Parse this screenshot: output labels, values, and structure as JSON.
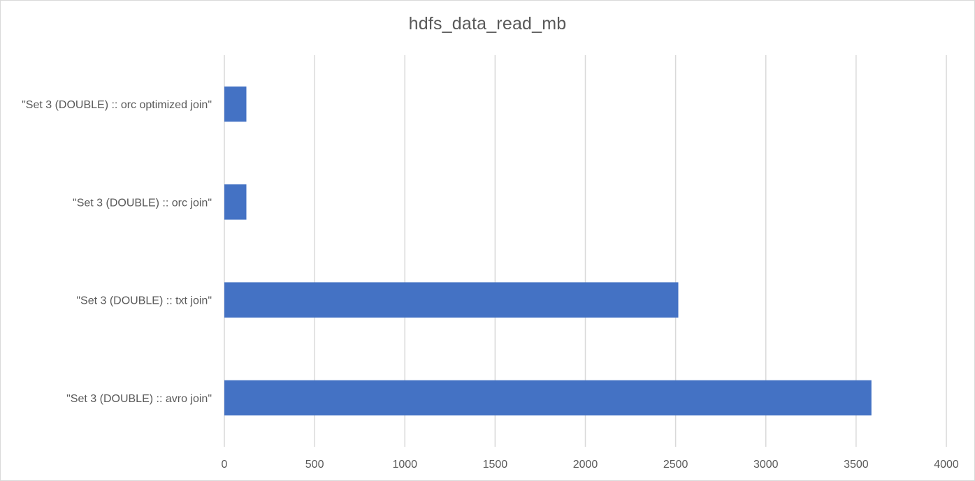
{
  "chart_data": {
    "type": "bar",
    "orientation": "horizontal",
    "title": "hdfs_data_read_mb",
    "xlabel": "",
    "ylabel": "",
    "categories": [
      "\"Set 3 (DOUBLE) :: orc optimized join\"",
      "\"Set 3 (DOUBLE) :: orc join\"",
      "\"Set 3 (DOUBLE) :: txt join\"",
      "\"Set 3 (DOUBLE) :: avro join\""
    ],
    "values": [
      122,
      122,
      2515,
      3585
    ],
    "xlim": [
      0,
      4000
    ],
    "x_ticks": [
      0,
      500,
      1000,
      1500,
      2000,
      2500,
      3000,
      3500,
      4000
    ],
    "x_tick_labels": [
      "0",
      "500",
      "1000",
      "1500",
      "2000",
      "2500",
      "3000",
      "3500",
      "4000"
    ],
    "grid": "vertical",
    "legend": "none",
    "bar_color": "#4472c4",
    "grid_color": "#d9d9d9"
  }
}
